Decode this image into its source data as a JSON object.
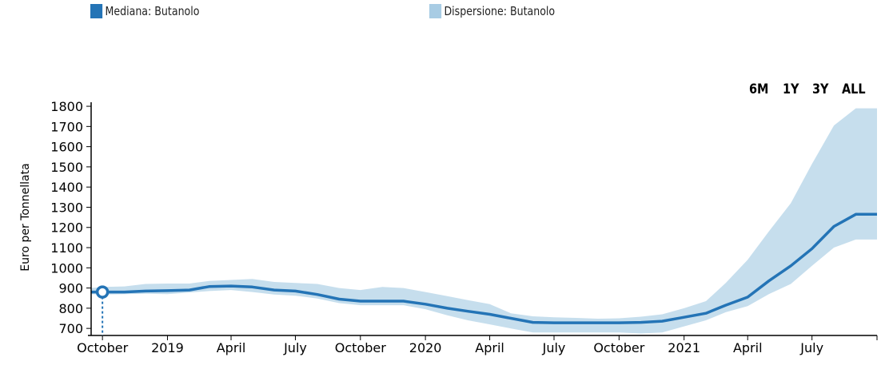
{
  "legend": {
    "items": [
      {
        "label": "Mediana: Butanolo",
        "color": "#2474b6"
      },
      {
        "label": "Dispersione: Butanolo",
        "color": "#a8cce4"
      }
    ]
  },
  "range_buttons": [
    "6M",
    "1Y",
    "3Y",
    "ALL"
  ],
  "chart_data": {
    "type": "line",
    "ylabel": "Euro per Tonnellata",
    "xlabel": "",
    "ylim": [
      665,
      1820
    ],
    "y_ticks": [
      700,
      800,
      900,
      1000,
      1100,
      1200,
      1300,
      1400,
      1500,
      1600,
      1700,
      1800
    ],
    "x_range": [
      "2018-09-15",
      "2021-10-01"
    ],
    "x_ticks": [
      {
        "label": "October",
        "date": "2018-10-01"
      },
      {
        "label": "2019",
        "date": "2019-01-01"
      },
      {
        "label": "April",
        "date": "2019-04-01"
      },
      {
        "label": "July",
        "date": "2019-07-01"
      },
      {
        "label": "October",
        "date": "2019-10-01"
      },
      {
        "label": "2020",
        "date": "2020-01-01"
      },
      {
        "label": "April",
        "date": "2020-04-01"
      },
      {
        "label": "July",
        "date": "2020-07-01"
      },
      {
        "label": "October",
        "date": "2020-10-01"
      },
      {
        "label": "2021",
        "date": "2021-01-01"
      },
      {
        "label": "April",
        "date": "2021-04-01"
      },
      {
        "label": "July",
        "date": "2021-07-01"
      }
    ],
    "series": [
      {
        "name": "Mediana: Butanolo",
        "color": "#2474b6",
        "x": [
          "2018-09-15",
          "2018-10-01",
          "2018-11-01",
          "2018-12-01",
          "2019-01-01",
          "2019-02-01",
          "2019-03-01",
          "2019-04-01",
          "2019-05-01",
          "2019-06-01",
          "2019-07-01",
          "2019-08-01",
          "2019-09-01",
          "2019-10-01",
          "2019-11-01",
          "2019-12-01",
          "2020-01-01",
          "2020-02-01",
          "2020-03-01",
          "2020-04-01",
          "2020-05-01",
          "2020-06-01",
          "2020-07-01",
          "2020-08-01",
          "2020-09-01",
          "2020-10-01",
          "2020-11-01",
          "2020-12-01",
          "2021-01-01",
          "2021-02-01",
          "2021-03-01",
          "2021-04-01",
          "2021-05-01",
          "2021-06-01",
          "2021-07-01",
          "2021-08-01",
          "2021-09-01",
          "2021-10-01"
        ],
        "values": [
          880,
          880,
          880,
          885,
          887,
          890,
          907,
          910,
          905,
          890,
          885,
          868,
          845,
          835,
          835,
          835,
          820,
          800,
          785,
          770,
          750,
          730,
          728,
          728,
          728,
          728,
          730,
          736,
          755,
          775,
          815,
          855,
          935,
          1010,
          1095,
          1205,
          1265,
          1265
        ]
      },
      {
        "name": "Dispersione: Butanolo",
        "color": "#a8cce4",
        "type": "area",
        "upper": [
          900,
          905,
          908,
          920,
          922,
          922,
          935,
          940,
          945,
          930,
          925,
          920,
          900,
          890,
          905,
          900,
          880,
          860,
          840,
          820,
          775,
          760,
          755,
          752,
          748,
          750,
          758,
          770,
          800,
          835,
          925,
          1040,
          1180,
          1320,
          1515,
          1705,
          1790,
          1790
        ],
        "lower": [
          870,
          868,
          870,
          872,
          870,
          878,
          885,
          890,
          880,
          868,
          862,
          848,
          825,
          815,
          815,
          815,
          795,
          765,
          740,
          720,
          700,
          680,
          680,
          680,
          680,
          680,
          675,
          680,
          710,
          740,
          780,
          810,
          870,
          920,
          1010,
          1100,
          1140,
          1140
        ]
      }
    ],
    "highlight_point": {
      "date": "2018-10-01",
      "value": 880
    }
  }
}
